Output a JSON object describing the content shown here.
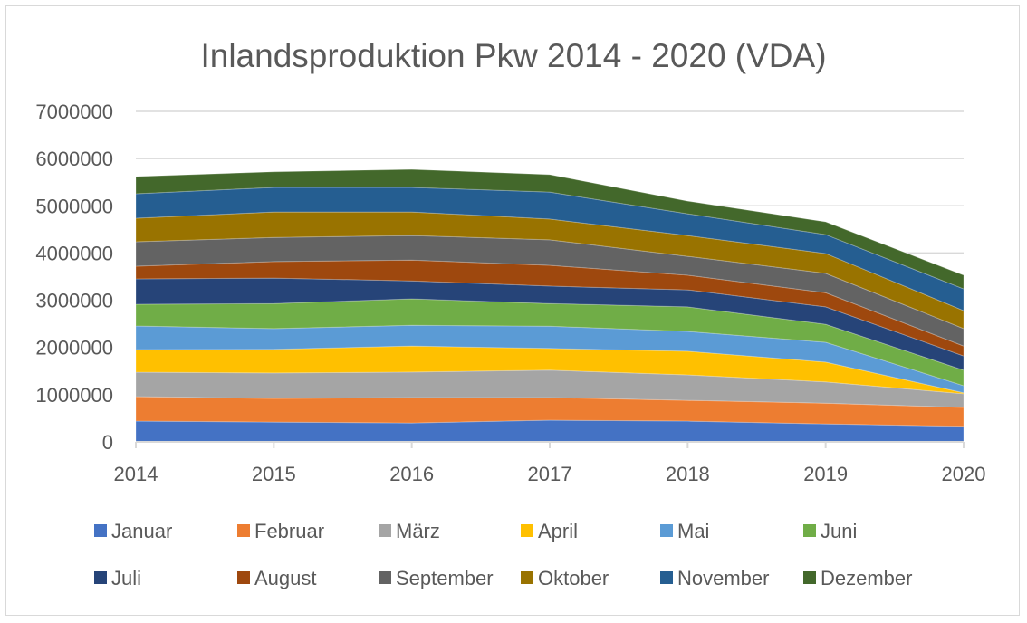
{
  "chart_data": {
    "type": "area",
    "stacked": true,
    "title": "Inlandsproduktion Pkw 2014 - 2020 (VDA)",
    "xlabel": "",
    "ylabel": "",
    "categories": [
      "2014",
      "2015",
      "2016",
      "2017",
      "2018",
      "2019",
      "2020"
    ],
    "ylim": [
      0,
      7000000
    ],
    "yticks": [
      "0",
      "1000000",
      "2000000",
      "3000000",
      "4000000",
      "5000000",
      "6000000",
      "7000000"
    ],
    "grid": true,
    "legend_position": "bottom",
    "series": [
      {
        "name": "Januar",
        "color": "#4472C4",
        "values": [
          441000,
          420000,
          400000,
          460000,
          440000,
          380000,
          330000
        ]
      },
      {
        "name": "Februar",
        "color": "#ED7D31",
        "values": [
          518000,
          500000,
          540000,
          480000,
          440000,
          440000,
          400000
        ]
      },
      {
        "name": "März",
        "color": "#A5A5A5",
        "values": [
          518000,
          540000,
          540000,
          580000,
          540000,
          450000,
          290000
        ]
      },
      {
        "name": "April",
        "color": "#FFC000",
        "values": [
          479000,
          500000,
          550000,
          460000,
          500000,
          420000,
          20000
        ]
      },
      {
        "name": "Mai",
        "color": "#5B9BD5",
        "values": [
          499000,
          440000,
          440000,
          470000,
          420000,
          420000,
          150000
        ]
      },
      {
        "name": "Juni",
        "color": "#70AD47",
        "values": [
          460000,
          530000,
          560000,
          480000,
          520000,
          380000,
          330000
        ]
      },
      {
        "name": "Juli",
        "color": "#264478",
        "values": [
          537000,
          540000,
          380000,
          370000,
          360000,
          370000,
          300000
        ]
      },
      {
        "name": "August",
        "color": "#9E480E",
        "values": [
          269000,
          350000,
          440000,
          440000,
          310000,
          300000,
          210000
        ]
      },
      {
        "name": "September",
        "color": "#636363",
        "values": [
          518000,
          510000,
          520000,
          540000,
          400000,
          410000,
          370000
        ]
      },
      {
        "name": "Oktober",
        "color": "#997300",
        "values": [
          498000,
          540000,
          500000,
          440000,
          440000,
          420000,
          380000
        ]
      },
      {
        "name": "November",
        "color": "#255E91",
        "values": [
          518000,
          520000,
          520000,
          570000,
          460000,
          400000,
          460000
        ]
      },
      {
        "name": "Dezember",
        "color": "#43682B",
        "values": [
          364000,
          330000,
          380000,
          370000,
          270000,
          270000,
          290000
        ]
      }
    ]
  }
}
